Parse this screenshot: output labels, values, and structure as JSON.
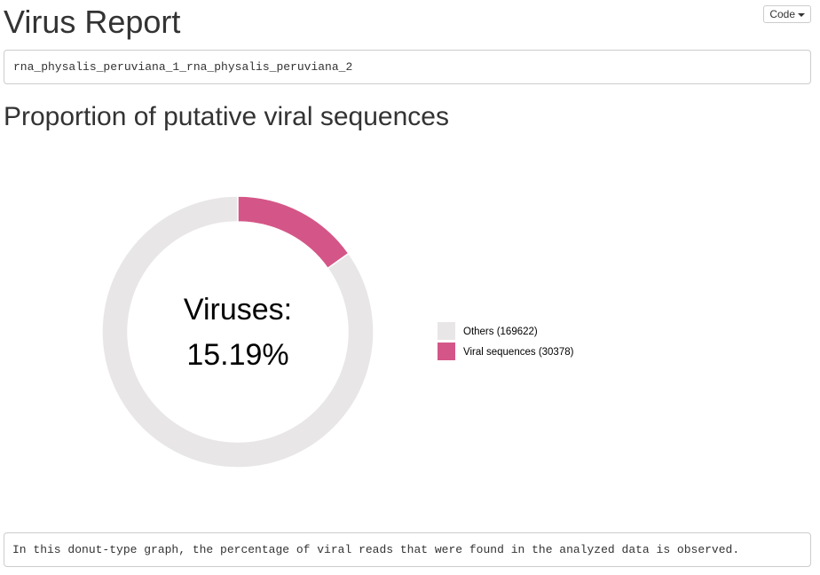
{
  "header": {
    "title": "Virus Report",
    "code_button_label": "Code"
  },
  "sample": {
    "name": "rna_physalis_peruviana_1_rna_physalis_peruviana_2"
  },
  "section": {
    "heading": "Proportion of putative viral sequences"
  },
  "chart_data": {
    "type": "pie",
    "style": "donut",
    "categories": [
      "Others (169622)",
      "Viral sequences (30378)"
    ],
    "values": [
      169622,
      30378
    ],
    "colors": [
      "#e8e6e7",
      "#d45688"
    ],
    "center_label_line1": "Viruses:",
    "center_label_line2": "15.19%",
    "legend_position": "right"
  },
  "note": {
    "text": "In this donut-type graph, the percentage of viral reads that were found in the analyzed data is observed."
  },
  "icons": {
    "dropdown": "caret-down-icon"
  }
}
